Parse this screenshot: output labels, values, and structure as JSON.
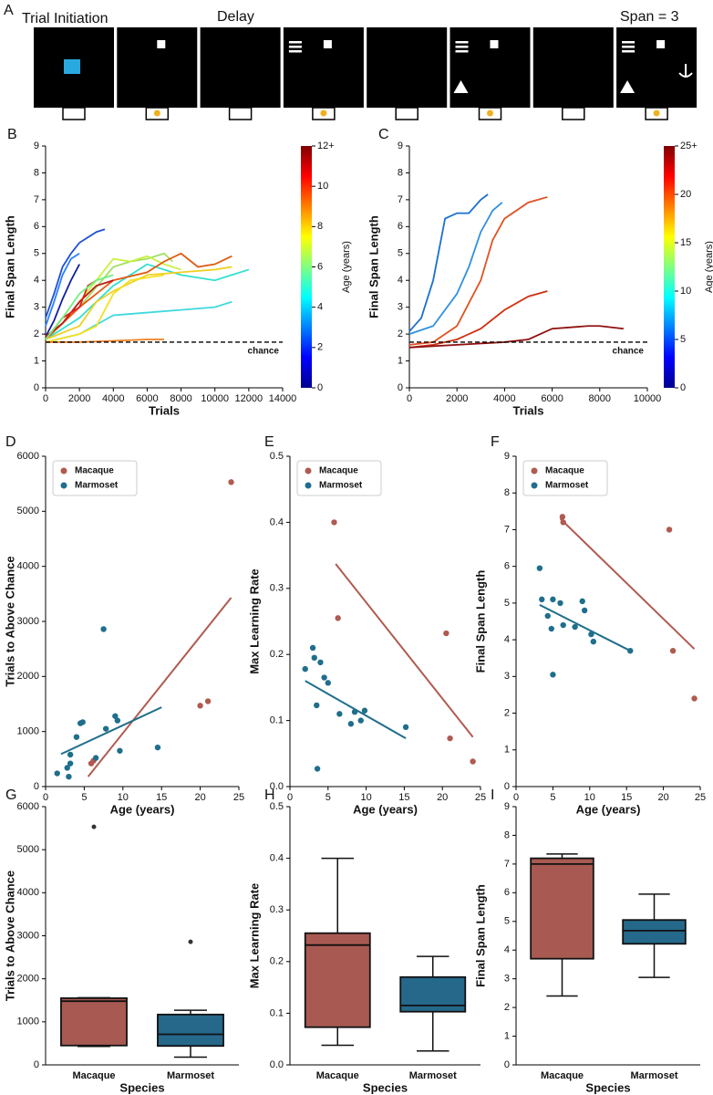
{
  "panel_a": {
    "label": "A",
    "texts": [
      "Trial Initiation",
      "Delay",
      "Span = 3"
    ]
  },
  "chart_data": [
    {
      "type": "line",
      "panel_label": "B",
      "xlabel": "Trials",
      "ylabel": "Final Span Length",
      "xlim": [
        0,
        14000
      ],
      "xticks": [
        0,
        2000,
        4000,
        6000,
        8000,
        10000,
        12000,
        14000
      ],
      "ylim": [
        0,
        9
      ],
      "yticks": [
        0,
        1,
        2,
        3,
        4,
        5,
        6,
        7,
        8,
        9
      ],
      "chance_level": 1.7,
      "chance_label": "chance",
      "colorbar": {
        "label": "Age (years)",
        "lim": [
          0,
          12
        ],
        "ticks": [
          0,
          2,
          4,
          6,
          8,
          10,
          {
            "value": 12,
            "label": "12+"
          }
        ],
        "colors": [
          "#00008f",
          "#0000ff",
          "#0080ff",
          "#00ffff",
          "#80ff80",
          "#ffff00",
          "#ff8000",
          "#ff0000",
          "#800000"
        ]
      },
      "series": [
        {
          "color": "#1f4fd8",
          "x": [
            0,
            500,
            1000,
            1500,
            2000,
            2500,
            3000,
            3500
          ],
          "values": [
            2.6,
            3.5,
            4.5,
            5.0,
            5.4,
            5.6,
            5.8,
            5.9
          ]
        },
        {
          "color": "#2a7fff",
          "x": [
            0,
            500,
            1000,
            1500,
            2000
          ],
          "values": [
            2.3,
            3.2,
            4.2,
            4.8,
            5.0
          ]
        },
        {
          "color": "#1020a0",
          "x": [
            0,
            500,
            1000,
            1500,
            2000
          ],
          "values": [
            1.9,
            2.5,
            3.3,
            4.0,
            4.6
          ]
        },
        {
          "color": "#30e0d0",
          "x": [
            0,
            1000,
            2000,
            4000,
            6000,
            8000,
            10000,
            12000
          ],
          "values": [
            1.8,
            2.2,
            2.6,
            3.8,
            4.6,
            4.2,
            4.0,
            4.4
          ]
        },
        {
          "color": "#40d8e0",
          "x": [
            0,
            2000,
            4000,
            6000,
            8000,
            10000,
            11000
          ],
          "values": [
            1.7,
            2.0,
            2.7,
            2.8,
            2.9,
            3.0,
            3.2
          ]
        },
        {
          "color": "#a0e060",
          "x": [
            0,
            2000,
            4000,
            5000,
            6000,
            7000,
            7500
          ],
          "values": [
            1.8,
            3.0,
            4.5,
            4.7,
            4.8,
            5.0,
            4.7
          ]
        },
        {
          "color": "#c8f040",
          "x": [
            0,
            1000,
            2000,
            3000,
            4000,
            5000,
            6000,
            7000,
            8000
          ],
          "values": [
            1.9,
            2.4,
            3.2,
            4.0,
            4.8,
            4.7,
            4.9,
            4.6,
            4.4
          ]
        },
        {
          "color": "#e05a10",
          "x": [
            0,
            2000,
            4000,
            6000,
            7000,
            8000,
            9000,
            10000,
            11000
          ],
          "values": [
            1.8,
            3.0,
            4.0,
            4.3,
            4.7,
            5.0,
            4.5,
            4.6,
            4.9
          ]
        },
        {
          "color": "#f0d020",
          "x": [
            0,
            2000,
            3000,
            4000,
            6000,
            8000,
            10000,
            11000
          ],
          "values": [
            1.8,
            2.3,
            3.2,
            3.6,
            4.2,
            4.3,
            4.4,
            4.5
          ]
        },
        {
          "color": "#f4e020",
          "x": [
            0,
            2000,
            3000,
            4000,
            5000,
            6000,
            7000
          ],
          "values": [
            1.7,
            2.0,
            2.3,
            3.5,
            4.0,
            4.1,
            4.2
          ]
        },
        {
          "color": "#f08020",
          "x": [
            0,
            2000,
            4000,
            6000,
            7000
          ],
          "values": [
            1.7,
            1.7,
            1.75,
            1.8,
            1.8
          ]
        },
        {
          "color": "#c01818",
          "x": [
            0,
            1000,
            2000,
            3000,
            4000
          ],
          "values": [
            1.9,
            2.4,
            3.2,
            3.8,
            4.0
          ]
        },
        {
          "color": "#e02020",
          "x": [
            0,
            1000,
            2000,
            2500,
            3000
          ],
          "values": [
            1.8,
            2.6,
            3.0,
            3.8,
            4.0
          ]
        },
        {
          "color": "#70f080",
          "x": [
            0,
            1000,
            2000,
            3000,
            4000
          ],
          "values": [
            1.8,
            2.6,
            3.5,
            4.0,
            4.2
          ]
        }
      ]
    },
    {
      "type": "line",
      "panel_label": "C",
      "xlabel": "Trials",
      "ylabel": "Final Span Length",
      "xlim": [
        0,
        10000
      ],
      "xticks": [
        0,
        2000,
        4000,
        6000,
        8000,
        10000
      ],
      "ylim": [
        0,
        9
      ],
      "yticks": [
        0,
        1,
        2,
        3,
        4,
        5,
        6,
        7,
        8,
        9
      ],
      "chance_level": 1.7,
      "chance_label": "chance",
      "colorbar": {
        "label": "Age (years)",
        "lim": [
          0,
          25
        ],
        "ticks": [
          0,
          5,
          10,
          15,
          20,
          {
            "value": 25,
            "label": "25+"
          }
        ],
        "colors": [
          "#00008f",
          "#0000ff",
          "#0080ff",
          "#00ffff",
          "#80ff80",
          "#ffff00",
          "#ff8000",
          "#ff0000",
          "#800000"
        ]
      },
      "series": [
        {
          "color": "#1a70d0",
          "x": [
            0,
            500,
            1000,
            1500,
            2000,
            2500,
            3000,
            3300
          ],
          "values": [
            2.1,
            2.6,
            4.0,
            6.3,
            6.5,
            6.5,
            7.0,
            7.2
          ]
        },
        {
          "color": "#3090e0",
          "x": [
            0,
            1000,
            2000,
            2500,
            3000,
            3500,
            3900
          ],
          "values": [
            2.0,
            2.3,
            3.5,
            4.5,
            5.8,
            6.6,
            6.9
          ]
        },
        {
          "color": "#e05020",
          "x": [
            0,
            1000,
            2000,
            3000,
            3500,
            4000,
            5000,
            5800
          ],
          "values": [
            1.6,
            1.7,
            2.3,
            4.0,
            5.5,
            6.3,
            6.9,
            7.1
          ]
        },
        {
          "color": "#d03010",
          "x": [
            0,
            1000,
            2000,
            3000,
            4000,
            5000,
            5800
          ],
          "values": [
            1.5,
            1.6,
            1.8,
            2.2,
            2.9,
            3.4,
            3.6
          ]
        },
        {
          "color": "#901010",
          "x": [
            0,
            2000,
            4000,
            5000,
            6000,
            7500,
            8000,
            9000
          ],
          "values": [
            1.5,
            1.6,
            1.7,
            1.8,
            2.2,
            2.3,
            2.3,
            2.2
          ]
        }
      ]
    },
    {
      "type": "scatter",
      "panel_label": "D",
      "xlabel": "Age (years)",
      "ylabel": "Trials to Above Chance",
      "xlim": [
        0,
        25
      ],
      "xticks": [
        0,
        5,
        10,
        15,
        20,
        25
      ],
      "ylim": [
        0,
        6000
      ],
      "yticks": [
        0,
        1000,
        2000,
        3000,
        4000,
        5000,
        6000
      ],
      "legend": "upper left",
      "series": [
        {
          "name": "Macaque",
          "color": "#b05a50",
          "x": [
            5.9,
            6.2,
            20,
            21,
            24
          ],
          "values": [
            420,
            470,
            1470,
            1550,
            5530
          ],
          "fit": {
            "x": [
              5.5,
              24
            ],
            "values": [
              180,
              3430
            ]
          }
        },
        {
          "name": "Marmoset",
          "color": "#1f6e8c",
          "x": [
            1.5,
            2.8,
            3,
            3.2,
            3.2,
            4,
            4.5,
            4.8,
            6.5,
            7.5,
            7.8,
            9,
            9.3,
            9.6,
            14.5
          ],
          "values": [
            240,
            340,
            180,
            580,
            420,
            900,
            1150,
            1170,
            520,
            2860,
            1050,
            1280,
            1200,
            650,
            710
          ],
          "fit": {
            "x": [
              2,
              15
            ],
            "values": [
              590,
              1440
            ]
          }
        }
      ]
    },
    {
      "type": "scatter",
      "panel_label": "E",
      "xlabel": "Age (years)",
      "ylabel": "Max Learning Rate",
      "xlim": [
        0,
        25
      ],
      "xticks": [
        0,
        5,
        10,
        15,
        20,
        25
      ],
      "ylim": [
        0,
        0.5
      ],
      "yticks": [
        {
          "value": 0,
          "label": "0.0"
        },
        0.1,
        0.2,
        0.3,
        0.4,
        0.5
      ],
      "legend": "upper left",
      "series": [
        {
          "name": "Macaque",
          "color": "#b05a50",
          "x": [
            5.8,
            6.3,
            20.5,
            21,
            24
          ],
          "values": [
            0.4,
            0.255,
            0.232,
            0.073,
            0.038
          ],
          "fit": {
            "x": [
              6,
              24
            ],
            "values": [
              0.337,
              0.075
            ]
          }
        },
        {
          "name": "Marmoset",
          "color": "#1f6e8c",
          "x": [
            2,
            3,
            3.2,
            3.5,
            3.6,
            4,
            4.5,
            5,
            6.5,
            8,
            8.5,
            9.3,
            9.8,
            15.2
          ],
          "values": [
            0.178,
            0.21,
            0.195,
            0.123,
            0.027,
            0.188,
            0.165,
            0.157,
            0.11,
            0.095,
            0.113,
            0.1,
            0.115,
            0.09
          ],
          "fit": {
            "x": [
              2,
              15.2
            ],
            "values": [
              0.16,
              0.073
            ]
          }
        }
      ]
    },
    {
      "type": "scatter",
      "panel_label": "F",
      "xlabel": "Age (years)",
      "ylabel": "Final Span Length",
      "xlim": [
        0,
        25
      ],
      "xticks": [
        0,
        5,
        10,
        15,
        20,
        25
      ],
      "ylim": [
        0,
        9
      ],
      "yticks": [
        0,
        1,
        2,
        3,
        4,
        5,
        6,
        7,
        8,
        9
      ],
      "legend": "upper left",
      "series": [
        {
          "name": "Macaque",
          "color": "#b05a50",
          "x": [
            6.3,
            6.4,
            20.8,
            21.3,
            24.2
          ],
          "values": [
            7.35,
            7.2,
            7.0,
            3.7,
            2.4
          ],
          "fit": {
            "x": [
              6,
              24.2
            ],
            "values": [
              7.3,
              3.75
            ]
          }
        },
        {
          "name": "Marmoset",
          "color": "#1f6e8c",
          "x": [
            3.2,
            3.5,
            4.3,
            4.8,
            5,
            5,
            6,
            6.4,
            8,
            9,
            9.3,
            10.2,
            10.5,
            15.5
          ],
          "values": [
            5.95,
            5.1,
            4.65,
            4.3,
            5.1,
            3.05,
            5.0,
            4.4,
            4.35,
            5.05,
            4.8,
            4.15,
            3.95,
            3.7
          ],
          "fit": {
            "x": [
              3.2,
              15.5
            ],
            "values": [
              4.95,
              3.7
            ]
          }
        }
      ]
    },
    {
      "type": "box",
      "panel_label": "G",
      "xlabel": "Species",
      "ylabel": "Trials to Above Chance",
      "ylim": [
        0,
        6000
      ],
      "yticks": [
        0,
        1000,
        2000,
        3000,
        4000,
        5000,
        6000
      ],
      "categories": [
        "Macaque",
        "Marmoset"
      ],
      "boxes": [
        {
          "color": "#a85a52",
          "min": 430,
          "q1": 450,
          "median": 1480,
          "q3": 1550,
          "max": 1560,
          "outliers": [
            5530
          ]
        },
        {
          "color": "#25688a",
          "min": 180,
          "q1": 440,
          "median": 710,
          "q3": 1170,
          "max": 1270,
          "outliers": [
            2860
          ]
        }
      ]
    },
    {
      "type": "box",
      "panel_label": "H",
      "xlabel": "Species",
      "ylabel": "Max Learning Rate",
      "ylim": [
        0,
        0.5
      ],
      "yticks": [
        {
          "value": 0,
          "label": "0.0"
        },
        0.1,
        0.2,
        0.3,
        0.4,
        0.5
      ],
      "categories": [
        "Macaque",
        "Marmoset"
      ],
      "boxes": [
        {
          "color": "#a85a52",
          "min": 0.038,
          "q1": 0.073,
          "median": 0.232,
          "q3": 0.255,
          "max": 0.4,
          "outliers": []
        },
        {
          "color": "#25688a",
          "min": 0.027,
          "q1": 0.103,
          "median": 0.115,
          "q3": 0.17,
          "max": 0.21,
          "outliers": []
        }
      ]
    },
    {
      "type": "box",
      "panel_label": "I",
      "xlabel": "Species",
      "ylabel": "Final Span Length",
      "ylim": [
        0,
        9
      ],
      "yticks": [
        0,
        1,
        2,
        3,
        4,
        5,
        6,
        7,
        8,
        9
      ],
      "categories": [
        "Macaque",
        "Marmoset"
      ],
      "boxes": [
        {
          "color": "#a85a52",
          "min": 2.4,
          "q1": 3.7,
          "median": 7.0,
          "q3": 7.2,
          "max": 7.35,
          "outliers": []
        },
        {
          "color": "#25688a",
          "min": 3.05,
          "q1": 4.22,
          "median": 4.68,
          "q3": 5.05,
          "max": 5.95,
          "outliers": []
        }
      ]
    }
  ]
}
